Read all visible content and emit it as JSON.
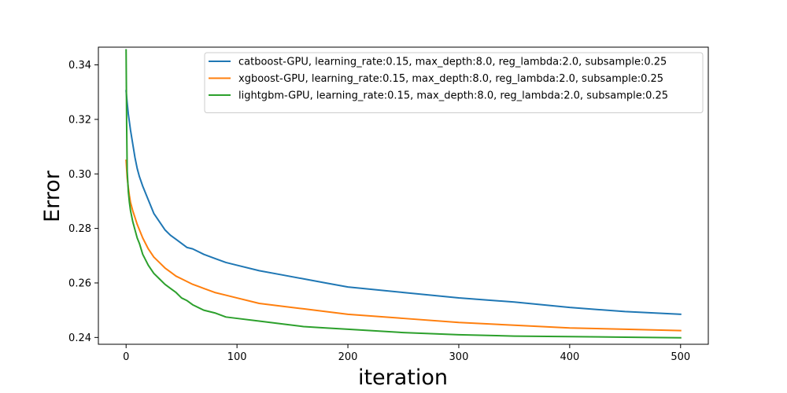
{
  "chart_data": {
    "type": "line",
    "title": "",
    "xlabel": "iteration",
    "ylabel": "Error",
    "xlim": [
      -25,
      525
    ],
    "ylim": [
      0.2375,
      0.3465
    ],
    "xticks": [
      0,
      100,
      200,
      300,
      400,
      500
    ],
    "yticks": [
      0.24,
      0.26,
      0.28,
      0.3,
      0.32,
      0.34
    ],
    "ytick_labels": [
      "0.24",
      "0.26",
      "0.28",
      "0.30",
      "0.32",
      "0.34"
    ],
    "grid": false,
    "legend_position": "top-right",
    "series": [
      {
        "name": "catboost-GPU, learning_rate:0.15, max_depth:8.0, reg_lambda:2.0, subsample:0.25",
        "color": "#1f77b4",
        "x": [
          0,
          1,
          2,
          3,
          4,
          6,
          8,
          10,
          12,
          15,
          20,
          25,
          30,
          35,
          40,
          45,
          50,
          55,
          60,
          70,
          80,
          90,
          100,
          120,
          140,
          160,
          180,
          200,
          250,
          300,
          350,
          400,
          450,
          500
        ],
        "y": [
          0.3305,
          0.326,
          0.322,
          0.319,
          0.316,
          0.311,
          0.306,
          0.302,
          0.299,
          0.2955,
          0.2905,
          0.2855,
          0.2825,
          0.2795,
          0.2775,
          0.276,
          0.2745,
          0.273,
          0.2725,
          0.2705,
          0.269,
          0.2675,
          0.2665,
          0.2645,
          0.263,
          0.2615,
          0.26,
          0.2585,
          0.2565,
          0.2545,
          0.253,
          0.251,
          0.2495,
          0.2485
        ]
      },
      {
        "name": "xgboost-GPU, learning_rate:0.15, max_depth:8.0, reg_lambda:2.0, subsample:0.25",
        "color": "#ff7f0e",
        "x": [
          0,
          1,
          2,
          3,
          4,
          6,
          8,
          10,
          12,
          15,
          20,
          25,
          30,
          35,
          40,
          45,
          50,
          55,
          60,
          70,
          80,
          90,
          100,
          120,
          140,
          160,
          180,
          200,
          250,
          300,
          350,
          400,
          450,
          500
        ],
        "y": [
          0.305,
          0.2985,
          0.295,
          0.292,
          0.2895,
          0.2865,
          0.284,
          0.2815,
          0.2795,
          0.2765,
          0.2725,
          0.2695,
          0.2675,
          0.2655,
          0.264,
          0.2625,
          0.2615,
          0.2605,
          0.2595,
          0.258,
          0.2565,
          0.2555,
          0.2545,
          0.2525,
          0.2515,
          0.2505,
          0.2495,
          0.2485,
          0.247,
          0.2455,
          0.2445,
          0.2435,
          0.243,
          0.2425
        ]
      },
      {
        "name": "lightgbm-GPU, learning_rate:0.15, max_depth:8.0, reg_lambda:2.0, subsample:0.25",
        "color": "#2ca02c",
        "x": [
          0,
          0.5,
          1,
          2,
          3,
          4,
          6,
          8,
          10,
          12,
          15,
          20,
          25,
          30,
          35,
          40,
          45,
          50,
          55,
          60,
          70,
          80,
          90,
          100,
          120,
          140,
          160,
          180,
          200,
          250,
          300,
          350,
          400,
          450,
          500
        ],
        "y": [
          0.3455,
          0.318,
          0.301,
          0.2935,
          0.2895,
          0.2865,
          0.2825,
          0.2795,
          0.2765,
          0.2745,
          0.2705,
          0.2665,
          0.2635,
          0.2615,
          0.2595,
          0.258,
          0.2565,
          0.2545,
          0.2535,
          0.252,
          0.25,
          0.249,
          0.2475,
          0.247,
          0.246,
          0.245,
          0.244,
          0.2435,
          0.243,
          0.2418,
          0.241,
          0.2405,
          0.2403,
          0.2401,
          0.2399
        ]
      }
    ]
  }
}
